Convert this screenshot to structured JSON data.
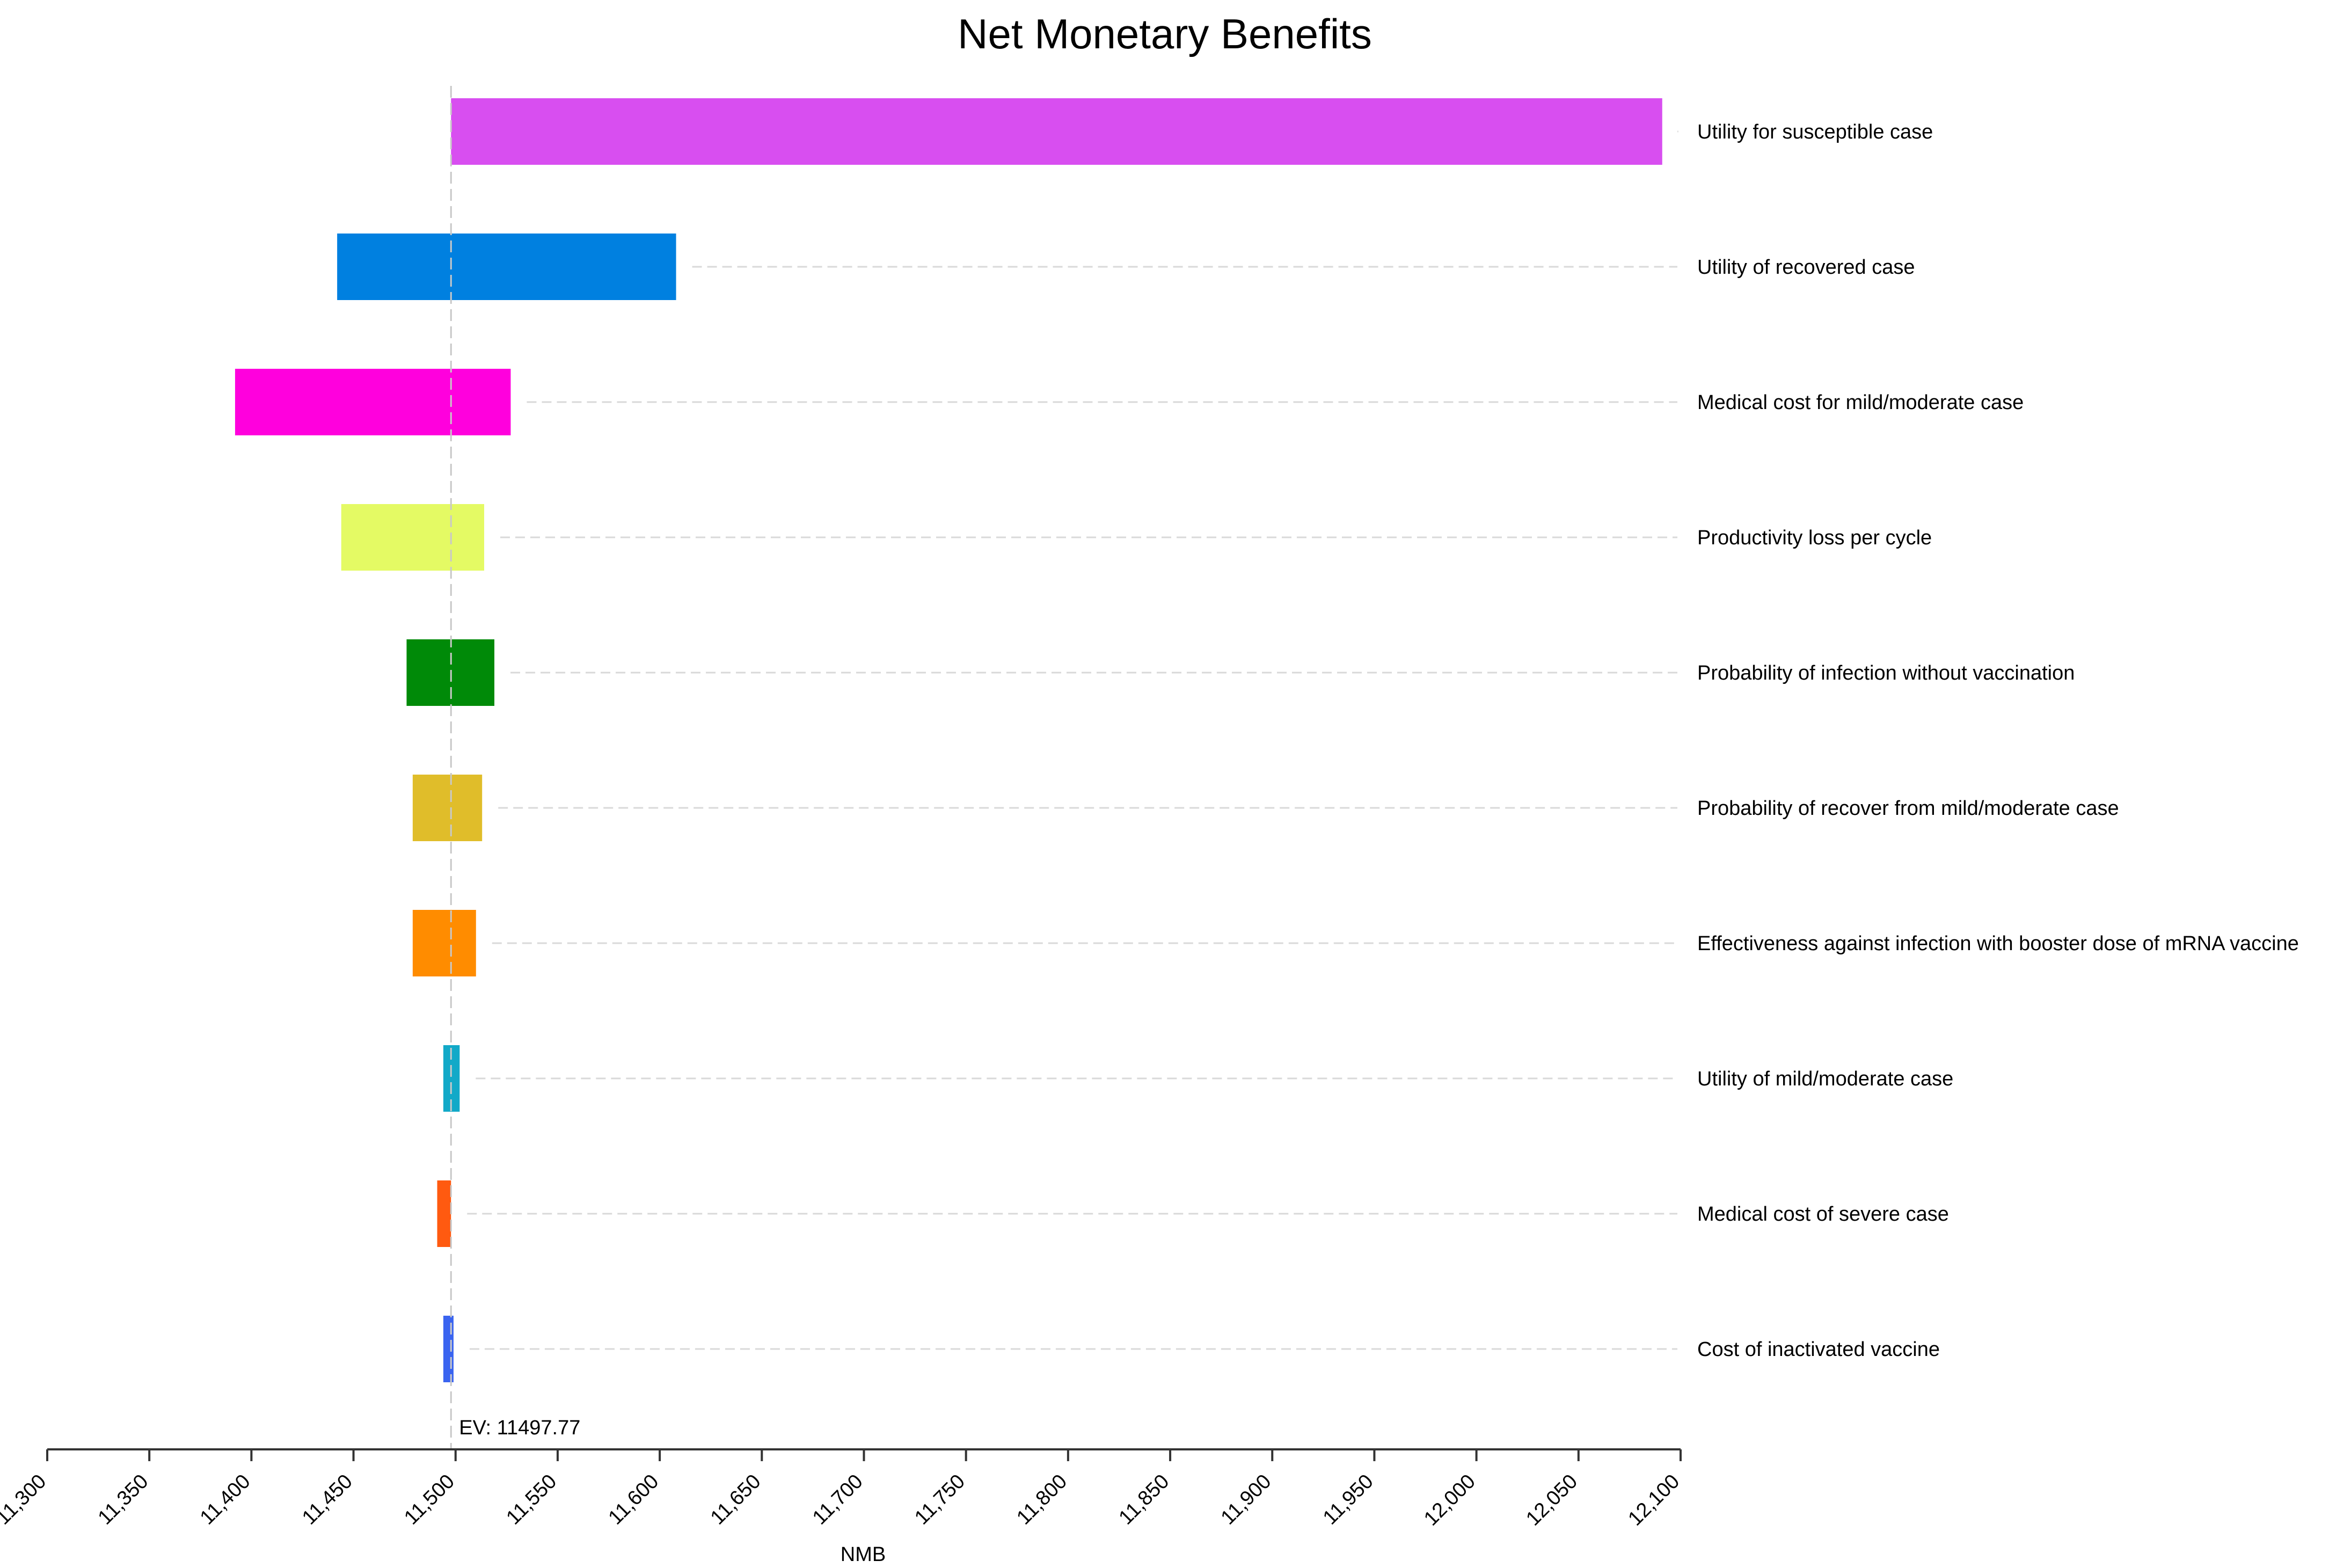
{
  "chart_data": {
    "type": "tornado",
    "title": "Net Monetary Benefits",
    "xlabel": "NMB",
    "ylabel": "",
    "xlim": [
      11300,
      12100
    ],
    "x_ticks": [
      11300,
      11350,
      11400,
      11450,
      11500,
      11550,
      11600,
      11650,
      11700,
      11750,
      11800,
      11850,
      11900,
      11950,
      12000,
      12050,
      12100
    ],
    "x_tick_labels": [
      "11,300",
      "11,350",
      "11,400",
      "11,450",
      "11,500",
      "11,550",
      "11,600",
      "11,650",
      "11,700",
      "11,750",
      "11,800",
      "11,850",
      "11,900",
      "11,950",
      "12,000",
      "12,050",
      "12,100"
    ],
    "ev": 11497.77,
    "ev_label": "EV: 11497.77",
    "grid": false,
    "bars": [
      {
        "label": "Utility for susceptible case",
        "low": 11497.77,
        "high": 12091,
        "color": "#d84ef0"
      },
      {
        "label": "Utility of recovered case",
        "low": 11442,
        "high": 11608,
        "color": "#0080e0"
      },
      {
        "label": "Medical cost for mild/moderate case",
        "low": 11392,
        "high": 11527,
        "color": "#ff00dd"
      },
      {
        "label": "Productivity loss per cycle",
        "low": 11444,
        "high": 11514,
        "color": "#e4fa64"
      },
      {
        "label": "Probability of infection without vaccination",
        "low": 11476,
        "high": 11519,
        "color": "#008a08"
      },
      {
        "label": "Probability of recover from mild/moderate case",
        "low": 11479,
        "high": 11513,
        "color": "#e0bd2a"
      },
      {
        "label": "Effectiveness against infection with booster dose of mRNA vaccine",
        "low": 11479,
        "high": 11510,
        "color": "#ff8c00"
      },
      {
        "label": "Utility of mild/moderate case",
        "low": 11494,
        "high": 11502,
        "color": "#12a9c8"
      },
      {
        "label": "Medical cost of severe case",
        "low": 11491,
        "high": 11497.77,
        "color": "#ff5a10"
      },
      {
        "label": "Cost of inactivated vaccine",
        "low": 11494,
        "high": 11499,
        "color": "#3a64f0"
      }
    ]
  }
}
